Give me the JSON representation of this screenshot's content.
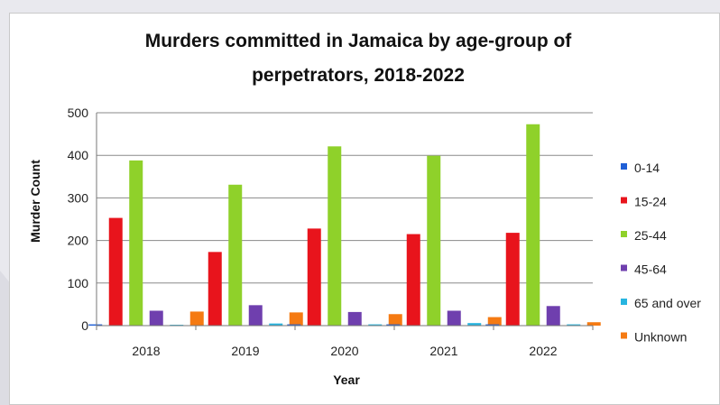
{
  "chart_data": {
    "type": "bar",
    "title_lines": [
      "Murders committed in Jamaica by age-group of",
      "perpetrators, 2018-2022"
    ],
    "xlabel": "Year",
    "ylabel": "Murder Count",
    "ylim": [
      0,
      500
    ],
    "yticks": [
      "0",
      "100",
      "200",
      "300",
      "400",
      "500"
    ],
    "categories": [
      "2018",
      "2019",
      "2020",
      "2021",
      "2022"
    ],
    "grid": true,
    "legend_position": "right",
    "series": [
      {
        "name": "0-14",
        "color": "#1f5fd6",
        "values": [
          3,
          1,
          3,
          3,
          3
        ]
      },
      {
        "name": "15-24",
        "color": "#e8141c",
        "values": [
          253,
          173,
          228,
          215,
          218
        ]
      },
      {
        "name": "25-44",
        "color": "#8fd12a",
        "values": [
          388,
          331,
          421,
          399,
          473
        ]
      },
      {
        "name": "45-64",
        "color": "#6f3fae",
        "values": [
          35,
          48,
          32,
          35,
          46
        ]
      },
      {
        "name": "65 and over",
        "color": "#27b5e0",
        "values": [
          2,
          5,
          3,
          6,
          3
        ]
      },
      {
        "name": "Unknown",
        "color": "#f57a12",
        "values": [
          33,
          31,
          27,
          20,
          8
        ]
      }
    ]
  }
}
